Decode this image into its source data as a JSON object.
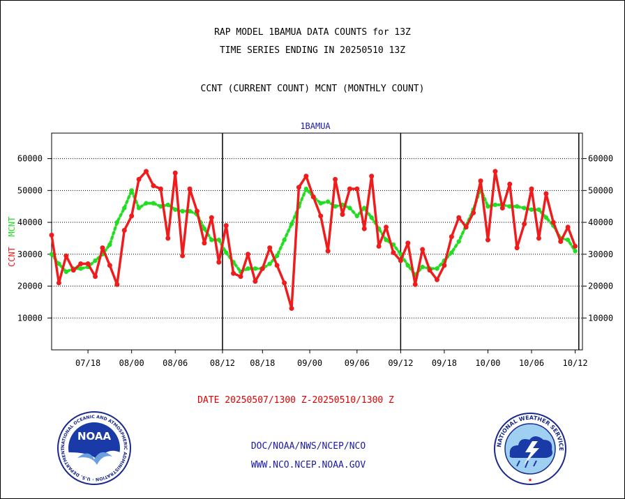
{
  "header": {
    "title_line1": "RAP MODEL 1BAMUA DATA COUNTS for 13Z",
    "title_line2": "TIME SERIES ENDING IN 20250510 13Z",
    "subtitle": "CCNT (CURRENT COUNT) MCNT (MONTHLY COUNT)"
  },
  "footer": {
    "date_range": "DATE 20250507/1300 Z-20250510/1300 Z",
    "agency": "DOC/NOAA/NWS/NCEP/NCO",
    "website": "WWW.NCO.NCEP.NOAA.GOV",
    "noaa_logo_text": "NOAA",
    "noaa_ring_text": "NATIONAL OCEANIC AND ATMOSPHERIC ADMINISTRATION · U.S. DEPARTMENT OF COMMERCE",
    "nws_ring_text": "NATIONAL WEATHER SERVICE"
  },
  "colors": {
    "ccnt": "#ee1c1c",
    "mcnt": "#22dd22",
    "plot_title": "#1a1aa6"
  },
  "chart_data": {
    "type": "line",
    "title": "1BAMUA",
    "ylabel_ccnt": "CCNT",
    "ylabel_mcnt": "MCNT",
    "ylim": [
      0,
      68000
    ],
    "yticks": [
      10000,
      20000,
      30000,
      40000,
      50000,
      60000
    ],
    "ytick_labels": [
      "10000",
      "20000",
      "30000",
      "40000",
      "50000",
      "60000"
    ],
    "grid": true,
    "x_index_range": [
      0,
      73
    ],
    "xticks": [
      {
        "i": 5,
        "label": "07/18"
      },
      {
        "i": 11,
        "label": "08/00"
      },
      {
        "i": 17,
        "label": "08/06"
      },
      {
        "i": 23.5,
        "label": "08/12"
      },
      {
        "i": 29,
        "label": "08/18"
      },
      {
        "i": 35.5,
        "label": "09/00"
      },
      {
        "i": 42,
        "label": "09/06"
      },
      {
        "i": 48,
        "label": "09/12"
      },
      {
        "i": 54,
        "label": "09/18"
      },
      {
        "i": 60,
        "label": "10/00"
      },
      {
        "i": 66,
        "label": "10/06"
      },
      {
        "i": 72,
        "label": "10/12"
      }
    ],
    "day_boundaries": [
      23.5,
      48,
      72.5
    ],
    "series": [
      {
        "name": "CCNT",
        "style": "solid",
        "values": [
          36000,
          21000,
          29500,
          25000,
          27000,
          27000,
          23000,
          32000,
          26500,
          20500,
          37500,
          42000,
          53500,
          56000,
          51500,
          50500,
          35000,
          55500,
          29500,
          50500,
          43500,
          33500,
          41500,
          27500,
          39000,
          24000,
          23000,
          30000,
          21500,
          25500,
          32000,
          26500,
          21000,
          13000,
          51000,
          54500,
          48000,
          42000,
          31000,
          53500,
          42500,
          50500,
          50500,
          38000,
          54500,
          32500,
          38500,
          30500,
          28000,
          33500,
          20500,
          31500,
          25000,
          22000,
          26500,
          35500,
          41500,
          38500,
          43000,
          53000,
          34500,
          56000,
          44500,
          52000,
          32000,
          39500,
          50500,
          35000,
          49000,
          40000,
          34000,
          38500,
          32500
        ]
      },
      {
        "name": "MCNT",
        "style": "dotted",
        "values": [
          30000,
          27000,
          24500,
          25500,
          25500,
          26000,
          28000,
          30000,
          33000,
          40000,
          44500,
          50000,
          44500,
          46000,
          46000,
          45000,
          45500,
          44000,
          43500,
          43500,
          42500,
          38000,
          34500,
          34500,
          30500,
          27500,
          24500,
          25500,
          25500,
          25500,
          27000,
          29500,
          34500,
          39500,
          45000,
          50500,
          48000,
          46000,
          46500,
          45000,
          45500,
          44500,
          42000,
          44500,
          41500,
          38000,
          34500,
          33000,
          30000,
          26500,
          23500,
          26000,
          25500,
          25500,
          28000,
          30500,
          34000,
          39000,
          44000,
          50500,
          45000,
          45500,
          45500,
          45000,
          45000,
          44500,
          44000,
          44000,
          41500,
          39000,
          35000,
          34500,
          31000
        ]
      }
    ]
  }
}
